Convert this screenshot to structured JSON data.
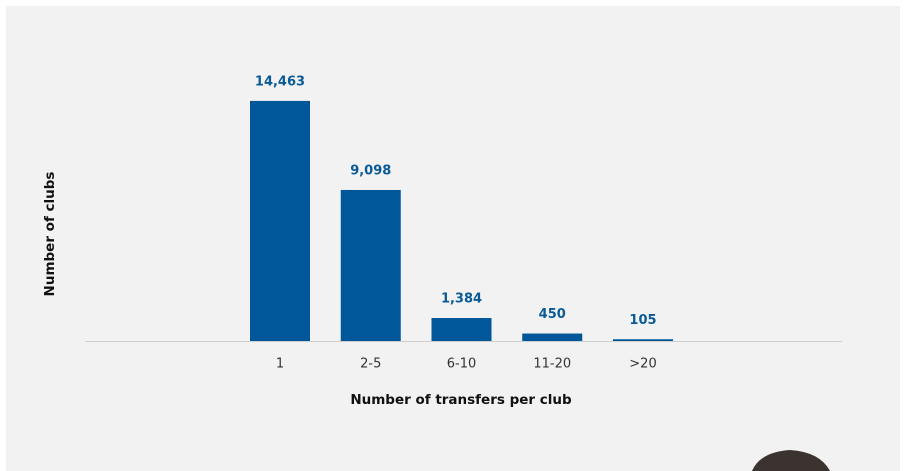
{
  "chart_data": {
    "type": "bar",
    "x_label": "Number of transfers per club",
    "y_label": "Number of clubs",
    "categories": [
      "1",
      "2-5",
      "6-10",
      "11-20",
      ">20"
    ],
    "values": [
      14463,
      9098,
      1384,
      450,
      105
    ],
    "value_labels": [
      "14,463",
      "9,098",
      "1,384",
      "450",
      "105"
    ],
    "color": "#00579a"
  }
}
